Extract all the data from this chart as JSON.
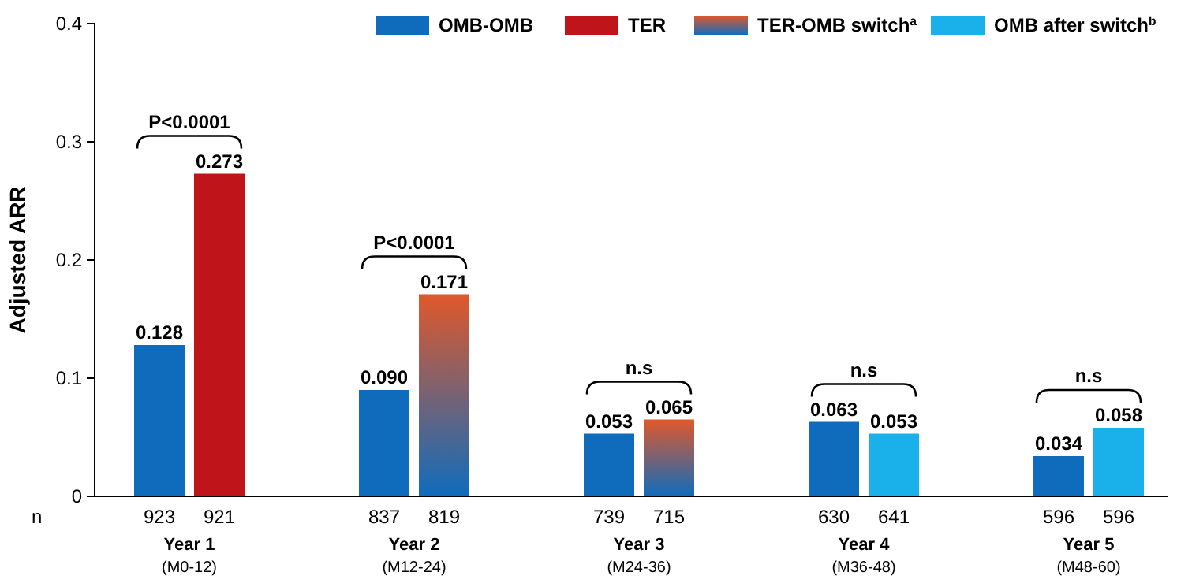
{
  "chart_data": {
    "type": "bar",
    "ylabel": "Adjusted ARR",
    "categories": [
      "Year 1\n(M0-12)",
      "Year 2\n(M12-24)",
      "Year 3\n(M24-36)",
      "Year 4\n(M36-48)",
      "Year 5\n(M48-60)"
    ],
    "series": [
      {
        "name": "OMB-OMB",
        "color": "#0f6cbd",
        "values": [
          0.128,
          0.09,
          0.053,
          0.063,
          0.034
        ],
        "value_labels": [
          "0.128",
          "0.090",
          "0.053",
          "0.063",
          "0.034"
        ]
      },
      {
        "name": "TER",
        "color": "#c0141b",
        "values": [
          0.273,
          null,
          null,
          null,
          null
        ],
        "value_labels": [
          "0.273",
          null,
          null,
          null,
          null
        ]
      },
      {
        "name": "TER-OMB switch$^{a}$",
        "color": "#e0582a",
        "values": [
          null,
          0.171,
          0.065,
          null,
          null
        ],
        "value_labels": [
          null,
          "0.171",
          "0.065",
          null,
          null
        ]
      },
      {
        "name": "OMB after switch$^{b}$",
        "color": "#1ab0ea",
        "values": [
          null,
          null,
          null,
          0.053,
          0.058
        ],
        "value_labels": [
          null,
          null,
          null,
          "0.053",
          "0.058"
        ]
      }
    ],
    "ylim": [
      0,
      0.4
    ],
    "yticks": [
      {
        "value": 0,
        "label": "0"
      },
      0.1,
      0.2,
      0.3,
      0.4
    ],
    "grid": false,
    "legend": "top right",
    "annotations": [
      "P<0.0001",
      "P<0.0001",
      "n.s",
      "n.s",
      "n.s",
      "n",
      "923",
      "921",
      "837",
      "819",
      "739",
      "715",
      "630",
      "641",
      "596",
      "596"
    ]
  }
}
